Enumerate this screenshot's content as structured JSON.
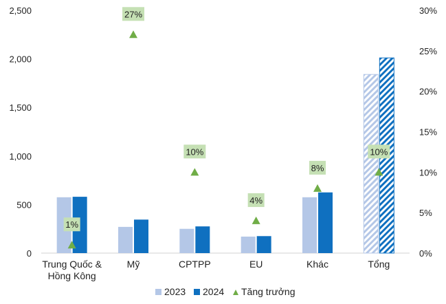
{
  "chart_data": {
    "type": "bar",
    "categories": [
      "Trung Quốc &\nHồng Kông",
      "Mỹ",
      "CPTPP",
      "EU",
      "Khác",
      "Tổng"
    ],
    "series": [
      {
        "name": "2023",
        "kind": "bar",
        "axis": "left",
        "color": "#b4c7e7",
        "values": [
          575,
          270,
          250,
          170,
          575,
          1840
        ]
      },
      {
        "name": "2024",
        "kind": "bar",
        "axis": "right_none",
        "color": "#0f70c0",
        "values": [
          580,
          345,
          275,
          175,
          625,
          2010
        ]
      },
      {
        "name": "Tăng trưởng",
        "kind": "marker",
        "axis": "right",
        "color": "#70ad47",
        "values": [
          1,
          27,
          10,
          4,
          8,
          10
        ],
        "labels": [
          "1%",
          "27%",
          "10%",
          "4%",
          "8%",
          "10%"
        ]
      }
    ],
    "hatched_category": "Tổng",
    "ylim_left": [
      0,
      2500
    ],
    "yticks_left": [
      "0",
      "500",
      "1,000",
      "1,500",
      "2,000",
      "2,500"
    ],
    "ylim_right": [
      0,
      30
    ],
    "yticks_right": [
      "0%",
      "5%",
      "10%",
      "15%",
      "20%",
      "25%",
      "30%"
    ],
    "label_bg_color": "#c5e0b4",
    "legend_position": "bottom",
    "grid": false
  }
}
